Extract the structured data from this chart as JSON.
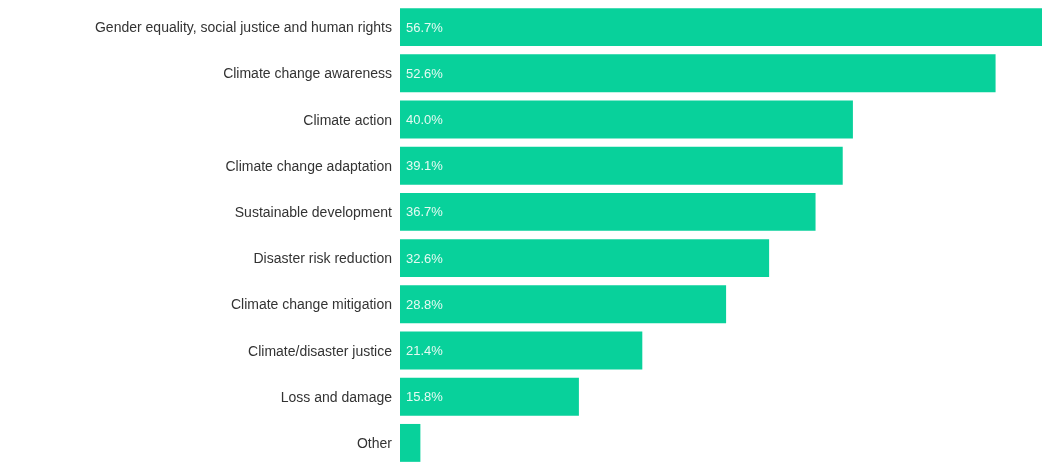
{
  "chart_data": {
    "type": "bar",
    "orientation": "horizontal",
    "categories": [
      "Gender equality, social justice and human rights",
      "Climate change awareness",
      "Climate action",
      "Climate change adaptation",
      "Sustainable development",
      "Disaster risk reduction",
      "Climate change mitigation",
      "Climate/disaster justice",
      "Loss and damage",
      "Other"
    ],
    "values": [
      56.7,
      52.6,
      40.0,
      39.1,
      36.7,
      32.6,
      28.8,
      21.4,
      15.8,
      1.8
    ],
    "value_labels": [
      "56.7%",
      "52.6%",
      "40.0%",
      "39.1%",
      "36.7%",
      "32.6%",
      "28.8%",
      "21.4%",
      "15.8%",
      null
    ],
    "color": "#08d19b",
    "xlim": [
      0,
      56.7
    ],
    "tick_labels": "y"
  }
}
